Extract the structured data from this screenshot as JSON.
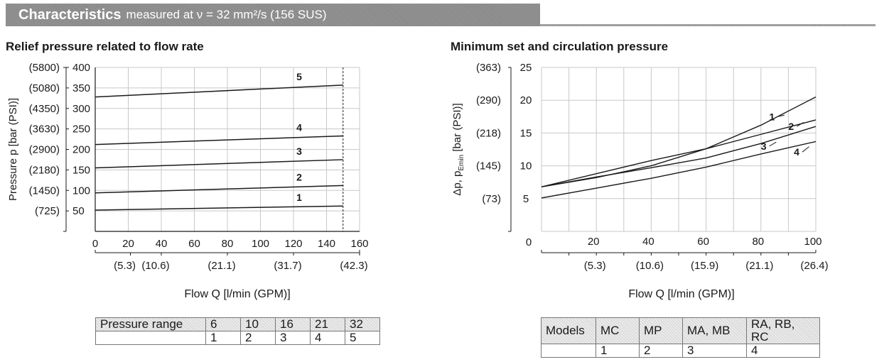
{
  "header": {
    "title": "Characteristics",
    "subtitle": "measured at ν = 32 mm²/s (156 SUS)"
  },
  "chart_data": [
    {
      "type": "line",
      "title": "Relief pressure related to flow rate",
      "xlabel": "Flow Q [l/min (GPM)]",
      "ylabel": "Pressure p [bar (PSI)]",
      "xlim": [
        0,
        160
      ],
      "ylim": [
        0,
        400
      ],
      "x_ticks": [
        0,
        20,
        40,
        60,
        80,
        100,
        120,
        140,
        160
      ],
      "x_ticks_gpm": [
        {
          "x": 21.3,
          "label": "(5.3)"
        },
        {
          "x": 40,
          "label": "(10.6)"
        },
        {
          "x": 80,
          "label": "(21.1)"
        },
        {
          "x": 120,
          "label": "(31.7)"
        },
        {
          "x": 160,
          "label": "(42.3)"
        }
      ],
      "y_ticks": [
        50,
        100,
        150,
        200,
        250,
        300,
        350,
        400
      ],
      "y_ticks_psi": [
        "(725)",
        "(1450)",
        "(2180)",
        "(2900)",
        "(3630)",
        "(4350)",
        "(5080)",
        "(5800)"
      ],
      "series": [
        {
          "name": "1",
          "x": [
            0,
            150
          ],
          "y": [
            52,
            62
          ]
        },
        {
          "name": "2",
          "x": [
            0,
            150
          ],
          "y": [
            94,
            112
          ]
        },
        {
          "name": "3",
          "x": [
            0,
            150
          ],
          "y": [
            155,
            175
          ]
        },
        {
          "name": "4",
          "x": [
            0,
            150
          ],
          "y": [
            212,
            233
          ]
        },
        {
          "name": "5",
          "x": [
            0,
            150
          ],
          "y": [
            328,
            357
          ]
        }
      ],
      "reference_line_x": 150
    },
    {
      "type": "line",
      "title": "Minimum set and circulation pressure",
      "xlabel": "Flow Q [l/min (GPM)]",
      "ylabel_main": "Δp, p",
      "ylabel_sub": "Emin",
      "ylabel_tail": " [bar (PSI)]",
      "xlim": [
        0,
        100
      ],
      "ylim": [
        0,
        25
      ],
      "x_ticks": [
        20,
        40,
        60,
        80,
        100
      ],
      "origin_label": "0",
      "x_ticks_gpm": [
        {
          "x": 20,
          "label": "(5.3)"
        },
        {
          "x": 40,
          "label": "(10.6)"
        },
        {
          "x": 60,
          "label": "(15.9)"
        },
        {
          "x": 80,
          "label": "(21.1)"
        },
        {
          "x": 100,
          "label": "(26.4)"
        }
      ],
      "y_ticks": [
        5,
        10,
        15,
        20,
        25
      ],
      "y_ticks_psi": [
        "(73)",
        "(145)",
        "(218)",
        "(290)",
        "(363)"
      ],
      "series": [
        {
          "name": "1",
          "x": [
            0,
            20,
            40,
            60,
            80,
            100
          ],
          "y": [
            6.8,
            8.2,
            10.0,
            12.6,
            16.2,
            20.5
          ]
        },
        {
          "name": "2",
          "x": [
            0,
            20,
            40,
            60,
            80,
            100
          ],
          "y": [
            6.8,
            8.8,
            10.8,
            12.6,
            14.8,
            17.0
          ]
        },
        {
          "name": "3",
          "x": [
            0,
            20,
            40,
            60,
            80,
            100
          ],
          "y": [
            6.8,
            8.3,
            9.7,
            11.2,
            13.4,
            16.0
          ]
        },
        {
          "name": "4",
          "x": [
            0,
            20,
            40,
            60,
            80,
            100
          ],
          "y": [
            5.1,
            6.6,
            8.1,
            9.8,
            11.8,
            13.7
          ]
        }
      ]
    }
  ],
  "tables": {
    "left": {
      "header": [
        "Pressure range",
        "6",
        "10",
        "16",
        "21",
        "32"
      ],
      "row": [
        "",
        "1",
        "2",
        "3",
        "4",
        "5"
      ]
    },
    "right": {
      "header": [
        "Models",
        "MC",
        "MP",
        "MA, MB",
        "RA, RB, RC"
      ],
      "row": [
        "",
        "1",
        "2",
        "3",
        "4"
      ]
    }
  }
}
